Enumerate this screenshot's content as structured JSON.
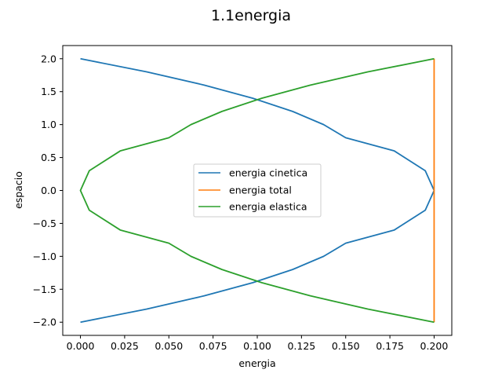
{
  "chart_data": {
    "type": "line",
    "title": "1.1energia",
    "xlabel": "energia",
    "ylabel": "espacio",
    "xlim": [
      -0.01,
      0.21
    ],
    "ylim": [
      -2.2,
      2.2
    ],
    "grid": false,
    "legend_position": "center",
    "x_ticks": [
      0.0,
      0.025,
      0.05,
      0.075,
      0.1,
      0.125,
      0.15,
      0.175,
      0.2
    ],
    "x_tick_labels": [
      "0.000",
      "0.025",
      "0.050",
      "0.075",
      "0.100",
      "0.125",
      "0.150",
      "0.175",
      "0.200"
    ],
    "y_ticks": [
      2.0,
      1.5,
      1.0,
      0.5,
      0.0,
      -0.5,
      -1.0,
      -1.5,
      -2.0
    ],
    "y_tick_labels": [
      "2.0",
      "1.5",
      "1.0",
      "0.5",
      "0.0",
      "−0.5",
      "−1.0",
      "−1.5",
      "−2.0"
    ],
    "series": [
      {
        "name": "energia cinetica",
        "color": "#1f77b4",
        "x": [
          0.0,
          0.0375,
          0.07,
          0.0975,
          0.12,
          0.1375,
          0.15,
          0.1775,
          0.195,
          0.2,
          0.195,
          0.1775,
          0.15,
          0.1375,
          0.12,
          0.0975,
          0.07,
          0.0375,
          0.0
        ],
        "y": [
          2.0,
          1.8,
          1.6,
          1.4,
          1.2,
          1.0,
          0.8,
          0.6,
          0.3,
          0.0,
          -0.3,
          -0.6,
          -0.8,
          -1.0,
          -1.2,
          -1.4,
          -1.6,
          -1.8,
          -2.0
        ]
      },
      {
        "name": "energia total",
        "color": "#ff7f0e",
        "x": [
          0.2,
          0.2
        ],
        "y": [
          2.0,
          -2.0
        ]
      },
      {
        "name": "energia elastica",
        "color": "#2ca02c",
        "x": [
          0.2,
          0.1625,
          0.13,
          0.1025,
          0.08,
          0.0625,
          0.05,
          0.0225,
          0.005,
          0.0,
          0.005,
          0.0225,
          0.05,
          0.0625,
          0.08,
          0.1025,
          0.13,
          0.1625,
          0.2
        ],
        "y": [
          2.0,
          1.8,
          1.6,
          1.4,
          1.2,
          1.0,
          0.8,
          0.6,
          0.3,
          0.0,
          -0.3,
          -0.6,
          -0.8,
          -1.0,
          -1.2,
          -1.4,
          -1.6,
          -1.8,
          -2.0
        ]
      }
    ]
  }
}
